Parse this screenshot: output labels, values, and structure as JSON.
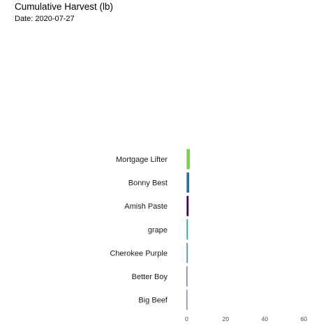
{
  "chart_data": {
    "type": "bar",
    "orientation": "horizontal",
    "title": "Cumulative Harvest (lb)",
    "subtitle": "Date: 2020-07-27",
    "categories": [
      "Mortgage Lifter",
      "Bonny Best",
      "Amish Paste",
      "grape",
      "Cherokee Purple",
      "Better Boy",
      "Big Beef"
    ],
    "values": [
      1.7,
      1.3,
      1.0,
      0.6,
      0.5,
      0.25,
      0.2
    ],
    "colors": [
      "#7ad151",
      "#2c728e",
      "#440154",
      "#22a884",
      "#21908d",
      "#482878",
      "#3b528b"
    ],
    "xticks": [
      0,
      20,
      40,
      60
    ],
    "xlim": [
      -0.5,
      62
    ],
    "grid": false,
    "legend": "none"
  }
}
